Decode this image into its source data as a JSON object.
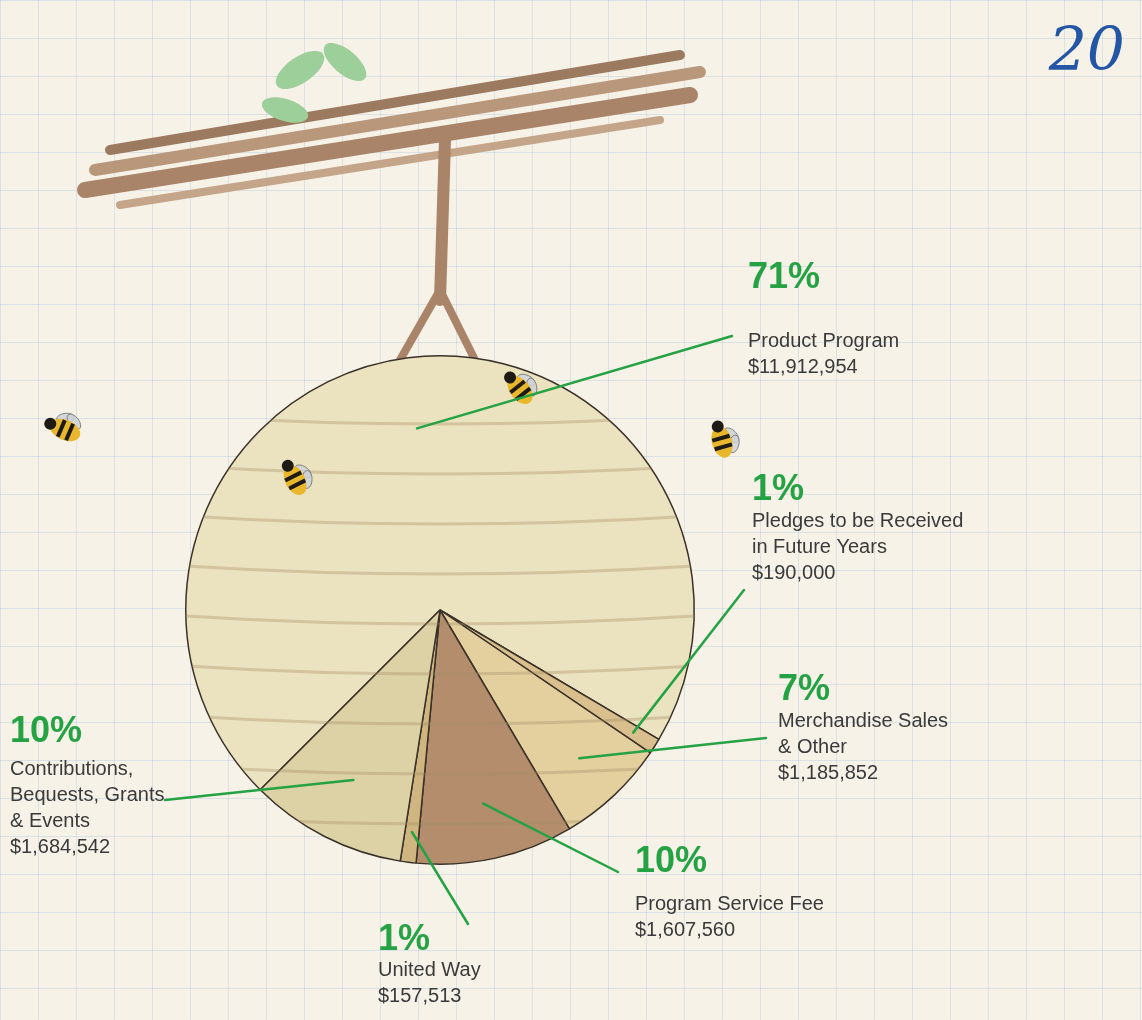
{
  "chart_data": {
    "type": "pie",
    "title": "20",
    "categories": [
      "Product Program",
      "Pledges to be Received in Future Years",
      "Merchandise Sales & Other",
      "Program Service Fee",
      "United Way",
      "Contributions, Bequests, Grants & Events"
    ],
    "values": [
      71,
      1,
      7,
      10,
      1,
      10
    ],
    "value_labels": [
      "71%",
      "1%",
      "7%",
      "10%",
      "1%",
      "10%"
    ],
    "amounts": [
      11912954,
      190000,
      1185852,
      1607560,
      157513,
      1684542
    ],
    "amount_labels": [
      "$11,912,954",
      "$190,000",
      "$1,185,852",
      "$1,607,560",
      "$157,513",
      "$1,684,542"
    ],
    "colors": [
      "#ebe2bf",
      "#d8bf8d",
      "#e4cf9e",
      "#b38d6c",
      "#cfb57f",
      "#ddd1a6"
    ],
    "data_labels": true,
    "legend": false
  }
}
